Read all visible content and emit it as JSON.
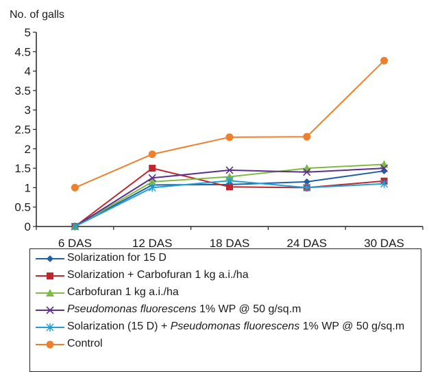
{
  "chart_data": {
    "type": "line",
    "ylabel": "No. of galls",
    "xlabel": "",
    "categories": [
      "6 DAS",
      "12 DAS",
      "18 DAS",
      "24 DAS",
      "30 DAS"
    ],
    "ylim": [
      0,
      5
    ],
    "yticks": [
      "0",
      "0.5",
      "1",
      "1.5",
      "2",
      "2.5",
      "3",
      "3.5",
      "4",
      "4.5",
      "5"
    ],
    "grid": false,
    "legend_position": "bottom",
    "series": [
      {
        "name": "Solarization for 15 D",
        "color": "#1f5fa8",
        "marker": "diamond",
        "values": [
          0,
          1.07,
          1.08,
          1.15,
          1.43
        ]
      },
      {
        "name": "Solarization + Carbofuran 1 kg a.i./ha",
        "color": "#c0272d",
        "marker": "square",
        "values": [
          0,
          1.5,
          1.02,
          1.0,
          1.17
        ]
      },
      {
        "name": "Carbofuran 1 kg a.i./ha",
        "color": "#7dbb42",
        "marker": "triangle",
        "values": [
          0,
          1.15,
          1.28,
          1.5,
          1.6
        ]
      },
      {
        "name_parts": [
          {
            "text": "Pseudomonas fluorescens",
            "italic": true
          },
          {
            "text": " 1% WP @ 50 g/sq.m",
            "italic": false
          }
        ],
        "color": "#5b2d8e",
        "marker": "x",
        "values": [
          0,
          1.25,
          1.45,
          1.4,
          1.5
        ]
      },
      {
        "name_parts": [
          {
            "text": "Solarization (15 D) + ",
            "italic": false
          },
          {
            "text": "Pseudomonas fluorescens",
            "italic": true
          },
          {
            "text": " 1% WP @ 50 g/sq.m",
            "italic": false
          }
        ],
        "color": "#1e9fd6",
        "marker": "star",
        "values": [
          0,
          1.0,
          1.18,
          1.0,
          1.1
        ]
      },
      {
        "name": "Control",
        "color": "#f07f2b",
        "marker": "circle",
        "values": [
          1.0,
          1.86,
          2.3,
          2.31,
          4.27
        ]
      }
    ]
  }
}
